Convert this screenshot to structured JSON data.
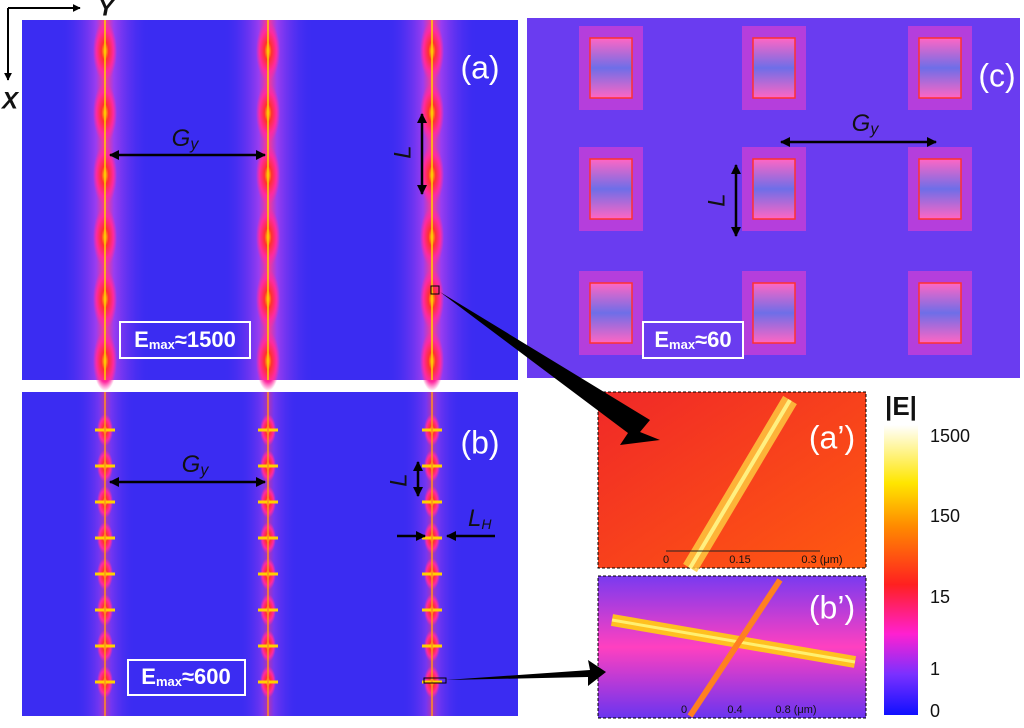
{
  "axes": {
    "y": "Y",
    "x": "X"
  },
  "panels": {
    "a": {
      "label": "(a)",
      "gap": {
        "main": "G",
        "sub": "y"
      },
      "length": "L",
      "emax": {
        "main": "E",
        "sub": "max",
        "rest": "≈1500"
      }
    },
    "b": {
      "label": "(b)",
      "gap": {
        "main": "G",
        "sub": "y"
      },
      "length": "L",
      "width": {
        "main": "L",
        "sub": "H"
      },
      "emax": {
        "main": "E",
        "sub": "max",
        "rest": "≈600"
      }
    },
    "c": {
      "label": "(c)",
      "gap": {
        "main": "G",
        "sub": "y"
      },
      "length": "L",
      "emax": {
        "main": "E",
        "sub": "max",
        "rest": "≈60"
      }
    },
    "a_zoom": {
      "label": "(a’)",
      "scale": [
        "0",
        "0.15",
        "0.3 (μm)"
      ]
    },
    "b_zoom": {
      "label": "(b’)",
      "scale": [
        "0",
        "0.4",
        "0.8 (μm)"
      ]
    }
  },
  "colorbar": {
    "title": "|E|",
    "labels": [
      "1500",
      "150",
      "15",
      "1",
      "0"
    ]
  }
}
